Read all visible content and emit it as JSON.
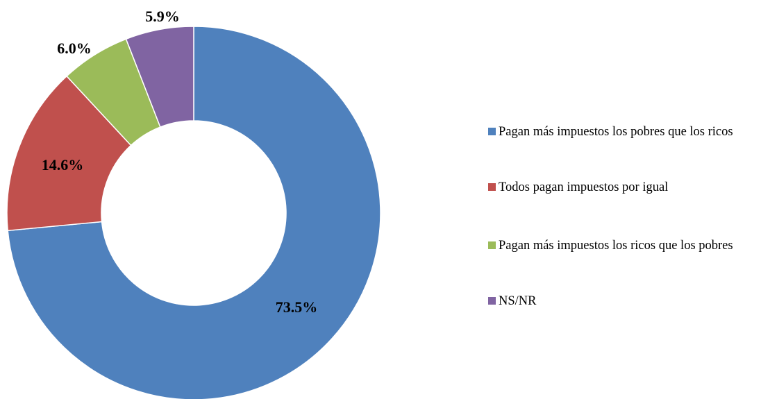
{
  "chart_data": {
    "type": "donut",
    "categories": [
      "Pagan más impuestos los pobres que los ricos",
      "Todos pagan impuestos por igual",
      "Pagan más impuestos los ricos que los pobres",
      "NS/NR"
    ],
    "values": [
      73.5,
      14.6,
      6.0,
      5.9
    ],
    "value_labels": [
      "73.5%",
      "14.6%",
      "6.0%",
      "5.9%"
    ],
    "colors": [
      "#4f81bd",
      "#c0504d",
      "#9bbb59",
      "#8064a2"
    ],
    "legend": "right"
  }
}
